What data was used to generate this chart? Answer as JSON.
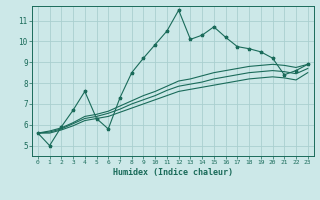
{
  "xlabel": "Humidex (Indice chaleur)",
  "ylabel": "",
  "bg_color": "#cce8e8",
  "grid_color": "#aacfcf",
  "line_color": "#1a6b5a",
  "xlim": [
    -0.5,
    23.5
  ],
  "ylim": [
    4.5,
    11.7
  ],
  "xticks": [
    0,
    1,
    2,
    3,
    4,
    5,
    6,
    7,
    8,
    9,
    10,
    11,
    12,
    13,
    14,
    15,
    16,
    17,
    18,
    19,
    20,
    21,
    22,
    23
  ],
  "yticks": [
    5,
    6,
    7,
    8,
    9,
    10,
    11
  ],
  "series1_x": [
    0,
    1,
    2,
    3,
    4,
    5,
    6,
    7,
    8,
    9,
    10,
    11,
    12,
    13,
    14,
    15,
    16,
    17,
    18,
    19,
    20,
    21,
    22,
    23
  ],
  "series1_y": [
    5.6,
    5.0,
    5.9,
    6.7,
    7.6,
    6.3,
    5.8,
    7.3,
    8.5,
    9.2,
    9.85,
    10.5,
    11.5,
    10.1,
    10.3,
    10.7,
    10.2,
    9.75,
    9.65,
    9.5,
    9.2,
    8.4,
    8.6,
    8.9
  ],
  "series2_x": [
    0,
    1,
    2,
    3,
    4,
    5,
    6,
    7,
    8,
    9,
    10,
    11,
    12,
    13,
    14,
    15,
    16,
    17,
    18,
    19,
    20,
    21,
    22,
    23
  ],
  "series2_y": [
    5.6,
    5.7,
    5.85,
    6.1,
    6.4,
    6.5,
    6.65,
    6.9,
    7.15,
    7.4,
    7.6,
    7.85,
    8.1,
    8.2,
    8.35,
    8.5,
    8.6,
    8.7,
    8.8,
    8.85,
    8.9,
    8.85,
    8.75,
    8.9
  ],
  "series3_x": [
    0,
    1,
    2,
    3,
    4,
    5,
    6,
    7,
    8,
    9,
    10,
    11,
    12,
    13,
    14,
    15,
    16,
    17,
    18,
    19,
    20,
    21,
    22,
    23
  ],
  "series3_y": [
    5.6,
    5.65,
    5.8,
    6.05,
    6.3,
    6.4,
    6.55,
    6.75,
    7.0,
    7.2,
    7.4,
    7.65,
    7.85,
    7.95,
    8.05,
    8.2,
    8.3,
    8.4,
    8.5,
    8.55,
    8.6,
    8.55,
    8.45,
    8.7
  ],
  "series4_x": [
    0,
    1,
    2,
    3,
    4,
    5,
    6,
    7,
    8,
    9,
    10,
    11,
    12,
    13,
    14,
    15,
    16,
    17,
    18,
    19,
    20,
    21,
    22,
    23
  ],
  "series4_y": [
    5.6,
    5.6,
    5.75,
    5.95,
    6.2,
    6.3,
    6.4,
    6.6,
    6.8,
    7.0,
    7.2,
    7.4,
    7.6,
    7.7,
    7.8,
    7.9,
    8.0,
    8.1,
    8.2,
    8.25,
    8.3,
    8.25,
    8.15,
    8.5
  ]
}
